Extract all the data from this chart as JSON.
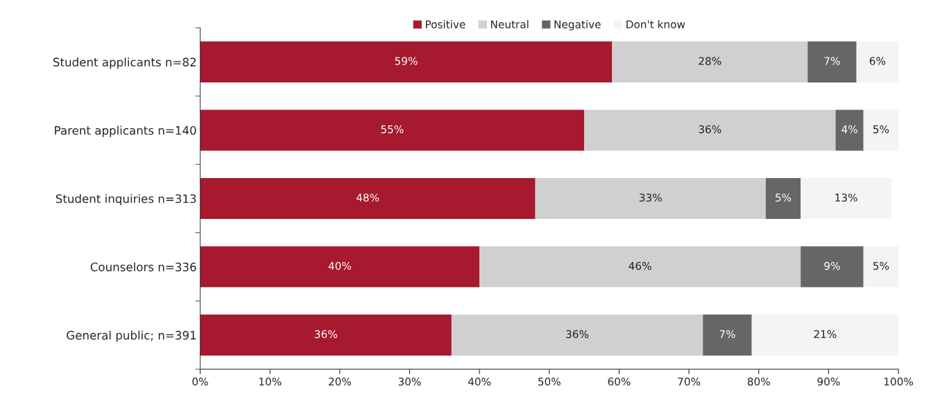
{
  "chart_data": {
    "type": "bar",
    "orientation": "horizontal",
    "stacked": true,
    "categories": [
      "Student applicants n=82",
      "Parent applicants n=140",
      "Student inquiries n=313",
      "Counselors n=336",
      "General public; n=391"
    ],
    "series": [
      {
        "name": "Positive",
        "color": "#a6192e",
        "values": [
          59,
          55,
          48,
          40,
          36
        ],
        "value_labels": [
          "59%",
          "55%",
          "48%",
          "40%",
          "36%"
        ]
      },
      {
        "name": "Neutral",
        "color": "#d0d0d0",
        "values": [
          28,
          36,
          33,
          46,
          36
        ],
        "value_labels": [
          "28%",
          "36%",
          "33%",
          "46%",
          "36%"
        ]
      },
      {
        "name": "Negative",
        "color": "#666666",
        "values": [
          7,
          4,
          5,
          9,
          7
        ],
        "value_labels": [
          "7%",
          "4%",
          "5%",
          "9%",
          "7%"
        ]
      },
      {
        "name": "Don't know",
        "color": "#f4f4f4",
        "values": [
          6,
          5,
          13,
          5,
          21
        ],
        "value_labels": [
          "6%",
          "5%",
          "13%",
          "5%",
          "21%"
        ]
      }
    ],
    "xlim": [
      0,
      100
    ],
    "xticks": [
      {
        "value": 0,
        "label": "0%"
      },
      {
        "value": 10,
        "label": "10%"
      },
      {
        "value": 20,
        "label": "20%"
      },
      {
        "value": 30,
        "label": "30%"
      },
      {
        "value": 40,
        "label": "40%"
      },
      {
        "value": 50,
        "label": "50%"
      },
      {
        "value": 60,
        "label": "60%"
      },
      {
        "value": 70,
        "label": "70%"
      },
      {
        "value": 80,
        "label": "80%"
      },
      {
        "value": 90,
        "label": "90%"
      },
      {
        "value": 100,
        "label": "100%"
      }
    ],
    "grid": false,
    "legend": "top"
  }
}
